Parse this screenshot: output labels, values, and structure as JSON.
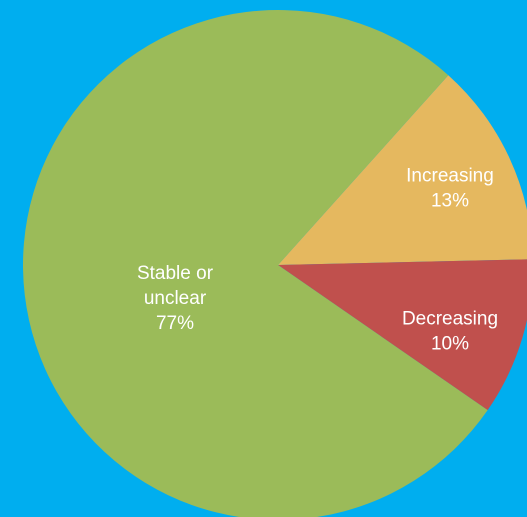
{
  "colors": {
    "background": "#00aeef",
    "label_text": "#ffffff"
  },
  "chart_data": {
    "type": "pie",
    "title": "",
    "slices": [
      {
        "label": "Increasing",
        "value": 13,
        "value_text": "13%",
        "color": "#e5b85f",
        "label_lines": [
          "Increasing"
        ]
      },
      {
        "label": "Decreasing",
        "value": 10,
        "value_text": "10%",
        "color": "#c0504d",
        "label_lines": [
          "Decreasing"
        ]
      },
      {
        "label": "Stable or unclear",
        "value": 77,
        "value_text": "77%",
        "color": "#9bbb59",
        "label_lines": [
          "Stable or",
          "unclear"
        ]
      }
    ],
    "legend": "none",
    "data_labels": "inside"
  }
}
